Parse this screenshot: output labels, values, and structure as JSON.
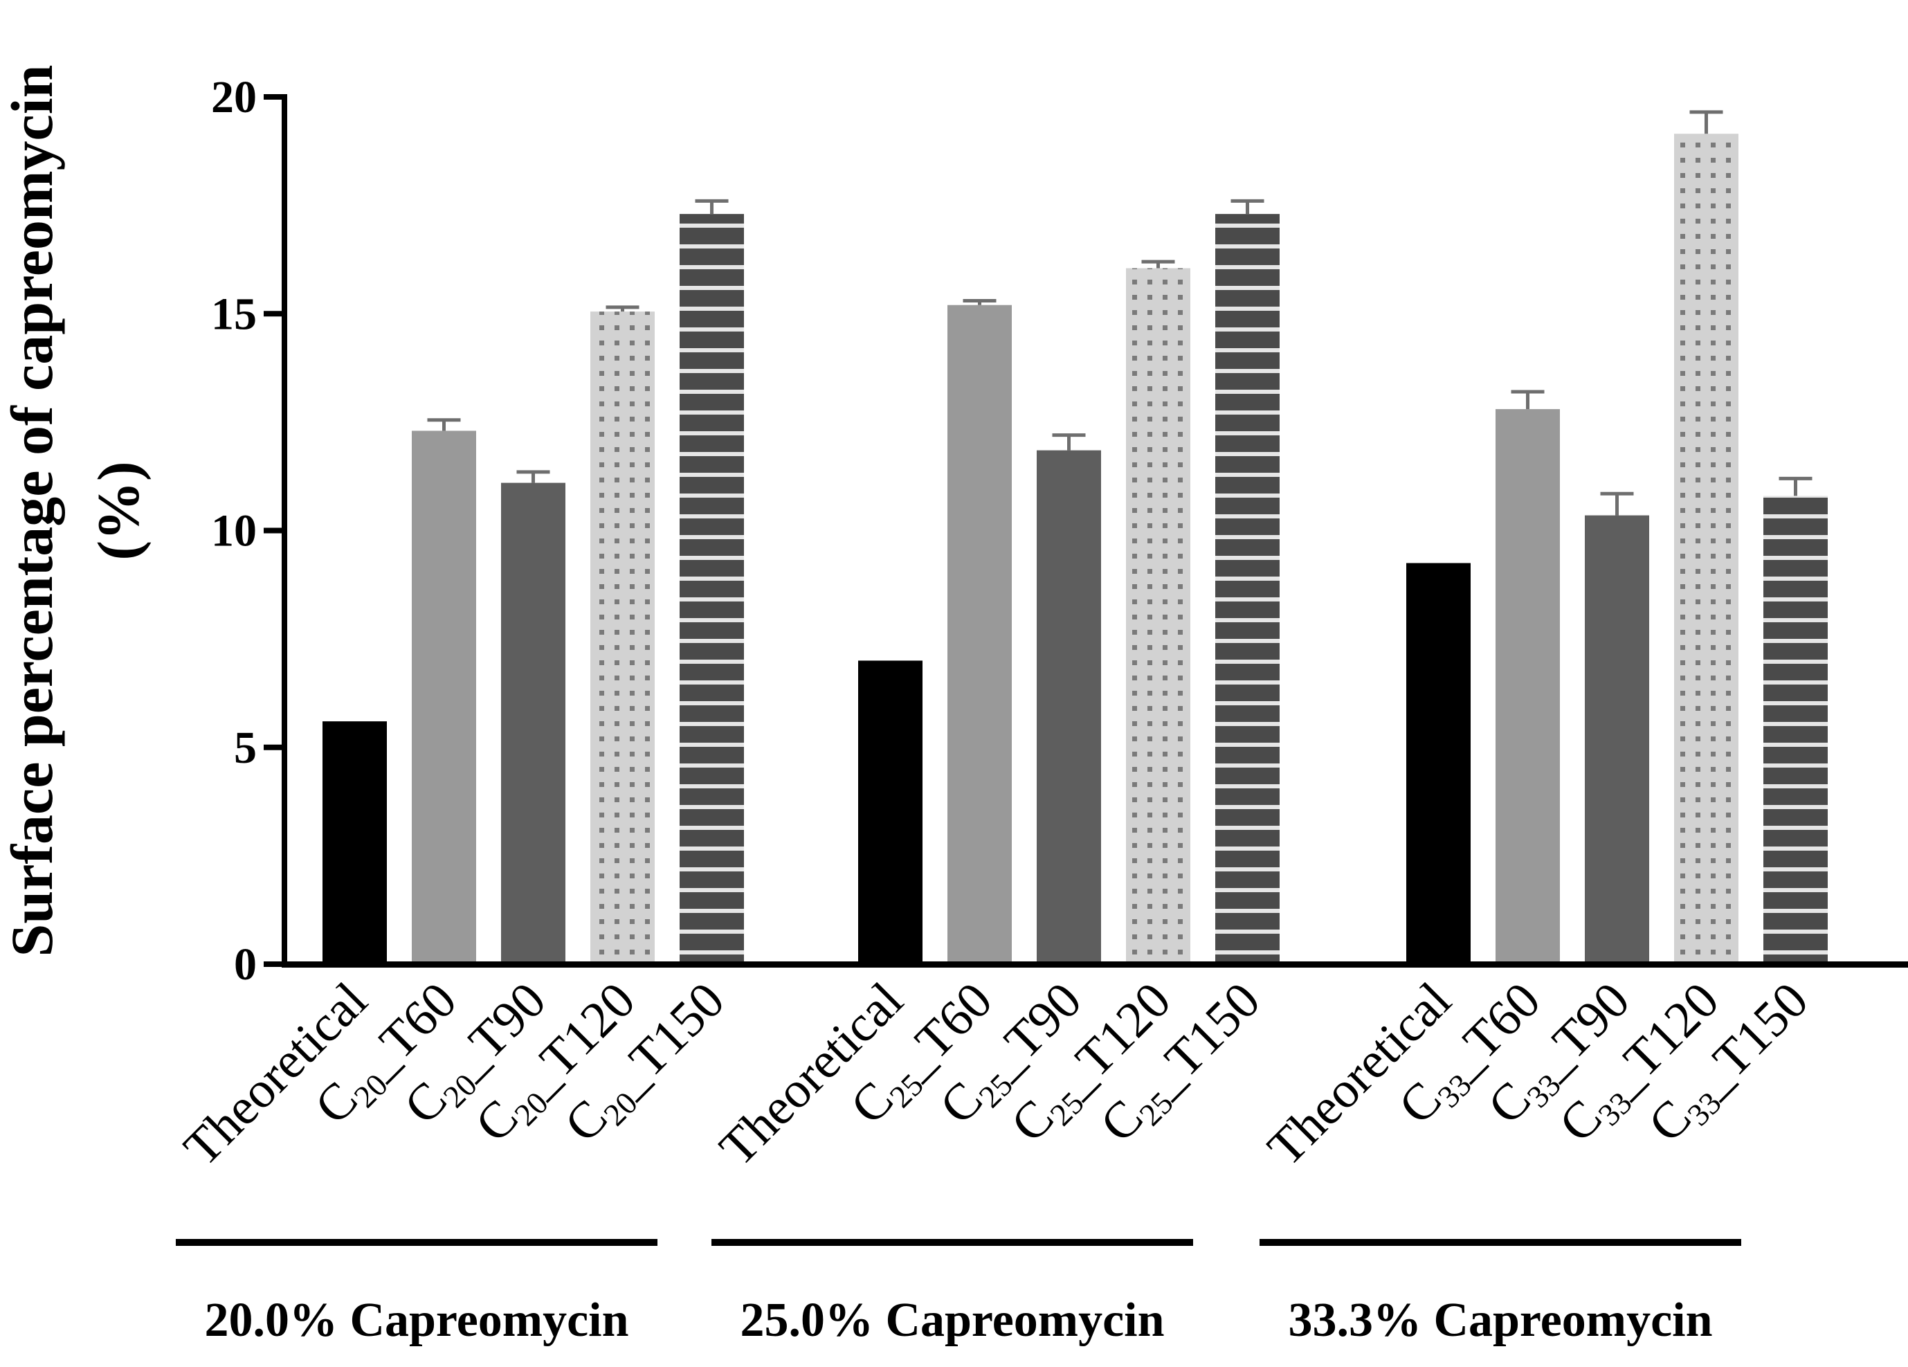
{
  "chart_data": {
    "type": "bar",
    "title": "",
    "ylabel_line1": "Surface percentage of capreomycin",
    "ylabel_line2": "(%)",
    "xlabel": "",
    "ylim": [
      0,
      20
    ],
    "yticks": [
      0,
      5,
      10,
      15,
      20
    ],
    "grid": false,
    "groups": [
      {
        "label": "20.0% Capreomycin",
        "bars": [
          {
            "label": "Theoretical",
            "prefix": "",
            "sub": "",
            "suffix": "",
            "value": 5.6,
            "error": 0,
            "style": "black"
          },
          {
            "label": "C20_T60",
            "prefix": "C",
            "sub": "20",
            "suffix": "_T60",
            "value": 12.3,
            "error": 0.25,
            "style": "light-gray"
          },
          {
            "label": "C20_T90",
            "prefix": "C",
            "sub": "20",
            "suffix": "_T90",
            "value": 11.1,
            "error": 0.25,
            "style": "dark-gray"
          },
          {
            "label": "C20_T120",
            "prefix": "C",
            "sub": "20",
            "suffix": "_T120",
            "value": 15.05,
            "error": 0.1,
            "style": "dotted"
          },
          {
            "label": "C20_T150",
            "prefix": "C",
            "sub": "20",
            "suffix": "_T150",
            "value": 17.3,
            "error": 0.3,
            "style": "striped"
          }
        ]
      },
      {
        "label": "25.0% Capreomycin",
        "bars": [
          {
            "label": "Theoretical",
            "prefix": "",
            "sub": "",
            "suffix": "",
            "value": 7.0,
            "error": 0,
            "style": "black"
          },
          {
            "label": "C25_T60",
            "prefix": "C",
            "sub": "25",
            "suffix": "_T60",
            "value": 15.2,
            "error": 0.1,
            "style": "light-gray"
          },
          {
            "label": "C25_T90",
            "prefix": "C",
            "sub": "25",
            "suffix": "_T90",
            "value": 11.85,
            "error": 0.35,
            "style": "dark-gray"
          },
          {
            "label": "C25_T120",
            "prefix": "C",
            "sub": "25",
            "suffix": "_T120",
            "value": 16.05,
            "error": 0.15,
            "style": "dotted"
          },
          {
            "label": "C25_T150",
            "prefix": "C",
            "sub": "25",
            "suffix": "_T150",
            "value": 17.3,
            "error": 0.3,
            "style": "striped"
          }
        ]
      },
      {
        "label": "33.3% Capreomycin",
        "bars": [
          {
            "label": "Theoretical",
            "prefix": "",
            "sub": "",
            "suffix": "",
            "value": 9.25,
            "error": 0,
            "style": "black"
          },
          {
            "label": "C33_T60",
            "prefix": "C",
            "sub": "33",
            "suffix": "_T60",
            "value": 12.8,
            "error": 0.4,
            "style": "light-gray"
          },
          {
            "label": "C33_T90",
            "prefix": "C",
            "sub": "33",
            "suffix": "_T90",
            "value": 10.35,
            "error": 0.5,
            "style": "dark-gray"
          },
          {
            "label": "C33_T120",
            "prefix": "C",
            "sub": "33",
            "suffix": "_T120",
            "value": 19.15,
            "error": 0.5,
            "style": "dotted"
          },
          {
            "label": "C33_T150",
            "prefix": "C",
            "sub": "33",
            "suffix": "_T150",
            "value": 10.8,
            "error": 0.4,
            "style": "striped"
          }
        ]
      }
    ],
    "colors": {
      "black": "#000000",
      "light_gray": "#999999",
      "dark_gray": "#5e5e5e",
      "dotted_bg": "#d2d2d2",
      "dotted_dot": "#7a7a7a",
      "striped_bg": "#4a4a4a",
      "striped_line": "#e6e6e6",
      "error_bar": "#6e6e6e",
      "axis": "#000000"
    }
  }
}
